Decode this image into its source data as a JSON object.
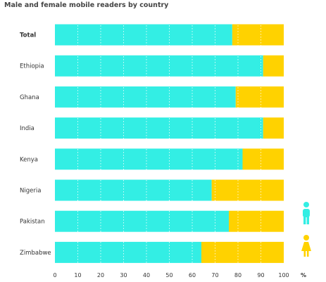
{
  "chart_data": {
    "type": "bar",
    "stacked": true,
    "orientation": "horizontal",
    "title": "Male and female mobile readers by country",
    "xlim": [
      0,
      100
    ],
    "xticks": [
      "0",
      "10",
      "20",
      "30",
      "40",
      "50",
      "60",
      "70",
      "80",
      "90",
      "100"
    ],
    "x_unit_label": "%",
    "categories": [
      "Total",
      "Ethiopia",
      "Ghana",
      "India",
      "Kenya",
      "Nigeria",
      "Pakistan",
      "Zimbabwe"
    ],
    "series": [
      {
        "name": "male",
        "color": "#33eee4",
        "values": [
          77.5,
          91,
          79,
          91,
          82,
          68.5,
          76,
          64
        ]
      },
      {
        "name": "female",
        "color": "#ffd200",
        "values": [
          22.5,
          9,
          21,
          9,
          18,
          31.5,
          24,
          36
        ]
      }
    ],
    "grid": true,
    "legend": "icons at right: male figure (cyan), female figure (yellow)",
    "icons": {
      "male": "male-figure-icon",
      "female": "female-figure-icon"
    }
  }
}
